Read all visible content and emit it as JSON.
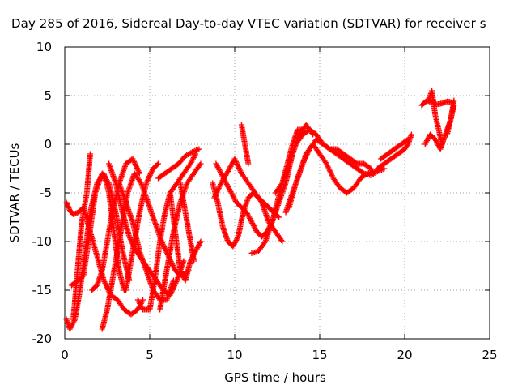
{
  "chart_data": {
    "type": "scatter",
    "title": "Day 285 of 2016, Sidereal Day-to-day VTEC variation (SDTVAR) for receiver s",
    "xlabel": "GPS time / hours",
    "ylabel": "SDTVAR / TECUs",
    "xlim": [
      0,
      25
    ],
    "ylim": [
      -20,
      10
    ],
    "xticks": [
      "0",
      "5",
      "10",
      "15",
      "20",
      "25"
    ],
    "yticks": [
      "-20",
      "-15",
      "-10",
      "-5",
      "0",
      "5",
      "10"
    ],
    "grid": true,
    "marker": "plus",
    "color": "#ff0000",
    "series": [
      {
        "x": [
          0.1,
          0.3,
          0.5,
          0.8,
          1.1,
          1.5,
          1.9,
          2.3,
          2.7,
          3.1,
          3.5,
          3.9,
          4.3,
          4.6
        ],
        "y": [
          -6,
          -6.8,
          -7.2,
          -7,
          -6.5,
          -9,
          -11.5,
          -14,
          -15.5,
          -16,
          -17,
          -17.5,
          -17,
          -16
        ]
      },
      {
        "x": [
          0.1,
          0.3,
          0.6,
          0.9,
          1.2,
          1.5,
          1.9,
          2.3,
          2.6,
          2.9,
          3.2,
          3.5
        ],
        "y": [
          -18,
          -19,
          -18,
          -15,
          -11,
          -7,
          -4,
          -3,
          -5,
          -9,
          -13,
          -15
        ]
      },
      {
        "x": [
          0.4,
          0.8,
          1.1,
          1.4,
          1.8,
          2.2,
          2.6,
          3.0,
          3.4,
          3.8
        ],
        "y": [
          -14.5,
          -14,
          -13.5,
          -10,
          -5,
          -3,
          -4,
          -7,
          -11,
          -14
        ]
      },
      {
        "x": [
          0.5,
          0.8,
          1.0,
          1.3,
          1.5
        ],
        "y": [
          -18,
          -12,
          -8,
          -5,
          -1
        ]
      },
      {
        "x": [
          1.6,
          1.9,
          2.2,
          2.5,
          2.8,
          3.2,
          3.6,
          4.0,
          4.4
        ],
        "y": [
          -15,
          -14.5,
          -13,
          -10,
          -7,
          -4,
          -2,
          -1.5,
          -3
        ]
      },
      {
        "x": [
          2.2,
          2.5,
          2.8,
          3.1,
          3.4,
          3.7,
          4.1,
          4.5,
          4.9,
          5.3,
          5.7,
          6.1,
          6.5,
          6.9,
          7.3
        ],
        "y": [
          -19,
          -17,
          -14,
          -11,
          -8,
          -5,
          -3,
          -4,
          -6,
          -8,
          -10,
          -11.5,
          -13,
          -13.5,
          -13
        ]
      },
      {
        "x": [
          2.6,
          3.0,
          3.4,
          3.8,
          4.2,
          4.6,
          5.0,
          5.4,
          5.8,
          6.2,
          6.6,
          7.0
        ],
        "y": [
          -2,
          -4,
          -7,
          -9.5,
          -11,
          -12,
          -13,
          -14,
          -15,
          -15.5,
          -14,
          -12
        ]
      },
      {
        "x": [
          3.2,
          3.6,
          4.0,
          4.4,
          4.8,
          5.2,
          5.6,
          6.0,
          6.4
        ],
        "y": [
          -4,
          -6,
          -8,
          -11,
          -13,
          -15,
          -16,
          -16,
          -14
        ]
      },
      {
        "x": [
          3.6,
          4.0,
          4.4,
          4.8,
          5.2,
          5.5
        ],
        "y": [
          -15,
          -11,
          -7,
          -4,
          -2.5,
          -2
        ]
      },
      {
        "x": [
          4.3,
          4.6,
          5.0,
          5.3,
          5.6,
          5.9,
          6.2,
          6.6,
          7.0,
          7.4,
          7.7
        ],
        "y": [
          -16,
          -17,
          -17,
          -14,
          -10,
          -7,
          -5,
          -4,
          -3,
          -2,
          -1
        ]
      },
      {
        "x": [
          5.5,
          5.9,
          6.3,
          6.7,
          7.1,
          7.5,
          7.9
        ],
        "y": [
          -3.5,
          -3,
          -2.5,
          -2,
          -1.2,
          -0.8,
          -0.5
        ]
      },
      {
        "x": [
          5.6,
          6.0,
          6.4,
          6.8,
          7.2,
          7.6,
          8.0
        ],
        "y": [
          -17,
          -13,
          -9,
          -6,
          -4,
          -3,
          -2
        ]
      },
      {
        "x": [
          6.2,
          6.5,
          6.8,
          7.1,
          7.4,
          7.7,
          8.0
        ],
        "y": [
          -5,
          -9,
          -13,
          -14,
          -12,
          -11,
          -10
        ]
      },
      {
        "x": [
          6.8,
          7.2,
          7.6
        ],
        "y": [
          -4,
          -8,
          -12
        ]
      },
      {
        "x": [
          8.7,
          9.0,
          9.3,
          9.6,
          9.9,
          10.2,
          10.5,
          10.8,
          11.1,
          11.4,
          11.7,
          12.0,
          12.3,
          12.6
        ],
        "y": [
          -4,
          -6,
          -8.5,
          -10,
          -10.5,
          -9.5,
          -7,
          -5.5,
          -5,
          -5.5,
          -6,
          -6.5,
          -7,
          -7.5
        ]
      },
      {
        "x": [
          8.8,
          9.2,
          9.6,
          10.0,
          10.4,
          10.8,
          11.2,
          11.6,
          12.0,
          12.4,
          12.8
        ],
        "y": [
          -5.5,
          -4,
          -2.8,
          -1.5,
          -3,
          -4,
          -5,
          -6,
          -8,
          -9,
          -10
        ]
      },
      {
        "x": [
          8.9,
          9.2,
          9.5,
          9.8,
          10.1,
          10.4,
          10.7,
          11.0,
          11.3,
          11.6,
          11.9,
          12.2,
          12.5,
          12.8,
          13.1,
          13.4,
          13.7,
          14.0
        ],
        "y": [
          -2,
          -3,
          -4,
          -5,
          -6,
          -6.5,
          -7,
          -8,
          -9,
          -9.5,
          -9,
          -8,
          -6,
          -4,
          -2,
          0,
          1.5,
          1.5
        ]
      },
      {
        "x": [
          10.4,
          10.6,
          10.8
        ],
        "y": [
          2,
          0,
          -2
        ]
      },
      {
        "x": [
          11.0,
          11.4,
          11.8,
          12.2,
          12.6,
          13.0,
          13.4,
          13.8,
          14.2,
          14.6
        ],
        "y": [
          -11.2,
          -11,
          -10,
          -8,
          -6,
          -4,
          -1,
          1,
          2,
          1
        ]
      },
      {
        "x": [
          12.4,
          12.8,
          13.2,
          13.6,
          14.0,
          14.4,
          14.8,
          15.2,
          15.6,
          16.0,
          16.4,
          16.8,
          17.2,
          17.6,
          18.0
        ],
        "y": [
          -5,
          -4,
          -2,
          0,
          1,
          1.5,
          1,
          0,
          -0.5,
          -0.5,
          -1,
          -1.5,
          -2,
          -2,
          -2.5
        ]
      },
      {
        "x": [
          13.0,
          13.4,
          13.8,
          14.2,
          14.6,
          15.0,
          15.4,
          15.8,
          16.2,
          16.6,
          17.0,
          17.4,
          17.8,
          18.2,
          18.6
        ],
        "y": [
          -7,
          -5,
          -3,
          -1,
          0,
          -1,
          -2,
          -3.5,
          -4.5,
          -5,
          -4.5,
          -3.5,
          -3,
          -2.8,
          -2.5
        ]
      },
      {
        "x": [
          13.2,
          13.6,
          14.0,
          14.4,
          14.8,
          15.2,
          15.6,
          16.0,
          16.4,
          16.8,
          17.2,
          17.6,
          18.0,
          18.4,
          18.8
        ],
        "y": [
          -6.5,
          -4,
          -2,
          -0.5,
          0.5,
          0,
          -0.5,
          -1,
          -1.5,
          -2,
          -2.5,
          -3,
          -3.2,
          -2.8,
          -2.5
        ]
      },
      {
        "x": [
          18.4,
          18.8,
          19.2,
          19.6,
          20.0,
          20.2,
          20.4
        ],
        "y": [
          -2.5,
          -2,
          -1.5,
          -1,
          -0.5,
          0,
          1
        ]
      },
      {
        "x": [
          18.6,
          19.0,
          19.4,
          19.8,
          20.2
        ],
        "y": [
          -1.5,
          -1,
          -0.5,
          0,
          0.5
        ]
      },
      {
        "x": [
          21.0,
          21.3,
          21.6,
          21.9,
          22.2,
          22.5,
          22.8
        ],
        "y": [
          4,
          4.5,
          4.3,
          4.1,
          4.2,
          4.4,
          4.3
        ]
      },
      {
        "x": [
          21.2,
          21.5,
          21.8,
          22.1,
          22.4,
          22.7,
          22.9
        ],
        "y": [
          0,
          1,
          0.5,
          -0.5,
          1,
          2.5,
          4
        ]
      },
      {
        "x": [
          21.4,
          21.6,
          21.8,
          22.0,
          22.2
        ],
        "y": [
          4.5,
          5.5,
          3,
          1.5,
          0
        ]
      },
      {
        "x": [
          22.5,
          22.7,
          22.9
        ],
        "y": [
          1,
          2.5,
          4.5
        ]
      }
    ]
  }
}
